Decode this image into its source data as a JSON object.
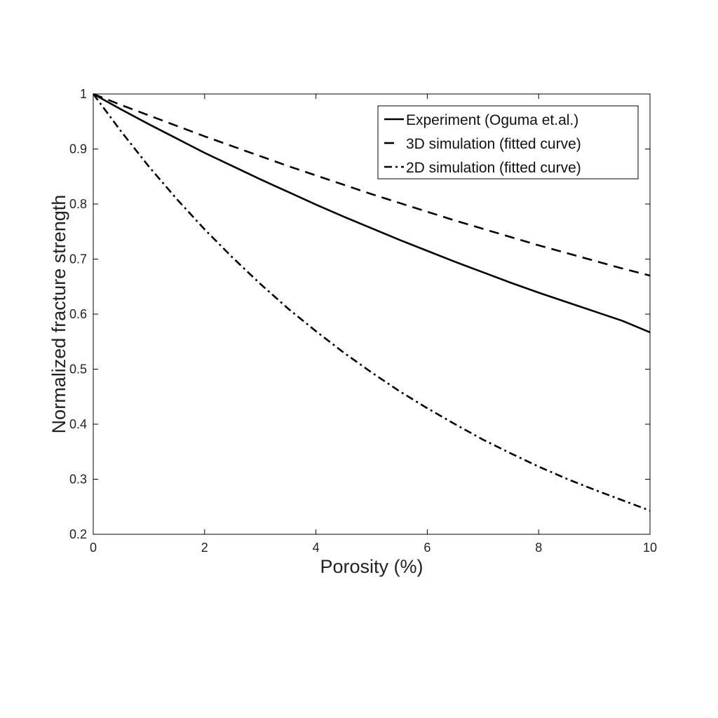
{
  "chart_data": {
    "type": "line",
    "xlabel": "Porosity (%)",
    "ylabel": "Normalized fracture strength",
    "xlim": [
      0,
      10
    ],
    "ylim": [
      0.2,
      1
    ],
    "xticks": [
      "0",
      "2",
      "4",
      "6",
      "8",
      "10"
    ],
    "yticks": [
      "0.2",
      "0.3",
      "0.4",
      "0.5",
      "0.6",
      "0.7",
      "0.8",
      "0.9",
      "1"
    ],
    "grid": false,
    "legend_position": "top-right",
    "x": [
      0,
      0.5,
      1,
      1.5,
      2,
      2.5,
      3,
      3.5,
      4,
      4.5,
      5,
      5.5,
      6,
      6.5,
      7,
      7.5,
      8,
      8.5,
      9,
      9.5,
      10
    ],
    "series": [
      {
        "name": "Experiment (Oguma et.al.)",
        "style": "solid",
        "color": "#000000",
        "values": [
          1.0,
          0.972,
          0.945,
          0.919,
          0.893,
          0.869,
          0.845,
          0.822,
          0.799,
          0.777,
          0.756,
          0.735,
          0.715,
          0.695,
          0.676,
          0.657,
          0.639,
          0.622,
          0.605,
          0.588,
          0.567
        ]
      },
      {
        "name": "3D simulation (fitted curve)",
        "style": "dashed",
        "color": "#000000",
        "values": [
          1.0,
          0.98,
          0.961,
          0.942,
          0.923,
          0.905,
          0.887,
          0.869,
          0.852,
          0.835,
          0.818,
          0.802,
          0.786,
          0.77,
          0.755,
          0.74,
          0.725,
          0.711,
          0.697,
          0.683,
          0.67
        ]
      },
      {
        "name": "2D simulation (fitted curve)",
        "style": "dashdot",
        "color": "#000000",
        "values": [
          1.0,
          0.932,
          0.868,
          0.809,
          0.754,
          0.703,
          0.655,
          0.61,
          0.569,
          0.53,
          0.494,
          0.46,
          0.429,
          0.4,
          0.372,
          0.347,
          0.323,
          0.301,
          0.281,
          0.262,
          0.243
        ]
      }
    ]
  }
}
